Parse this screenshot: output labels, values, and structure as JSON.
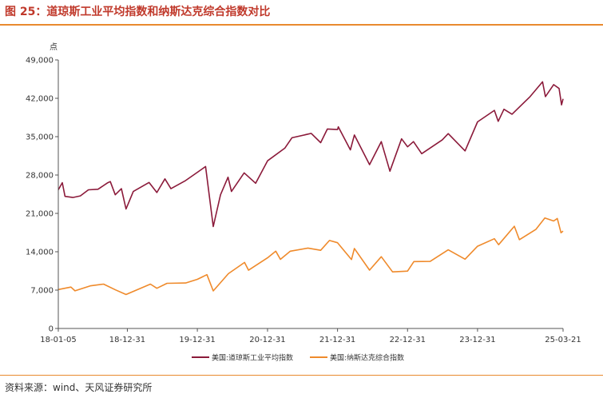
{
  "figure": {
    "title": "图 25：道琼斯工业平均指数和纳斯达克综合指数对比",
    "source": "资料来源：wind、天风证券研究所"
  },
  "colors": {
    "accent": "#e98a2e",
    "title": "#c0392b",
    "dow": "#8b1a3a",
    "nasdaq": "#ef8a2b"
  },
  "chart_data": {
    "type": "line",
    "ylabel": "点",
    "ylim": [
      0,
      49000
    ],
    "yticks": [
      0,
      7000,
      14000,
      21000,
      28000,
      35000,
      42000,
      49000
    ],
    "ytick_labels": [
      "0",
      "7,000",
      "14,000",
      "21,000",
      "28,000",
      "35,000",
      "42,000",
      "49,000"
    ],
    "xticks": [
      "18-01-05",
      "18-12-31",
      "19-12-31",
      "20-12-31",
      "21-12-31",
      "22-12-31",
      "23-12-31",
      "25-03-21"
    ],
    "xtick_dates": [
      "2018-01-05",
      "2018-12-31",
      "2019-12-31",
      "2020-12-31",
      "2021-12-31",
      "2022-12-31",
      "2023-12-31",
      "2025-03-21"
    ],
    "xlim": [
      "2018-01-05",
      "2025-03-21"
    ],
    "legend_position": "bottom",
    "series": [
      {
        "name": "美国:道琼斯工业平均指数",
        "color": "#8b1a3a",
        "points": [
          [
            "2018-01-05",
            25300
          ],
          [
            "2018-01-26",
            26600
          ],
          [
            "2018-02-09",
            24100
          ],
          [
            "2018-03-22",
            23900
          ],
          [
            "2018-04-30",
            24200
          ],
          [
            "2018-06-11",
            25300
          ],
          [
            "2018-07-31",
            25400
          ],
          [
            "2018-09-20",
            26600
          ],
          [
            "2018-10-03",
            26800
          ],
          [
            "2018-10-29",
            24400
          ],
          [
            "2018-11-30",
            25500
          ],
          [
            "2018-12-24",
            21800
          ],
          [
            "2019-01-31",
            25000
          ],
          [
            "2019-04-23",
            26650
          ],
          [
            "2019-06-03",
            24800
          ],
          [
            "2019-07-15",
            27300
          ],
          [
            "2019-08-15",
            25500
          ],
          [
            "2019-10-31",
            27000
          ],
          [
            "2019-12-31",
            28500
          ],
          [
            "2020-02-12",
            29550
          ],
          [
            "2020-03-23",
            18600
          ],
          [
            "2020-04-30",
            24400
          ],
          [
            "2020-06-08",
            27600
          ],
          [
            "2020-06-26",
            25000
          ],
          [
            "2020-08-31",
            28400
          ],
          [
            "2020-10-30",
            26500
          ],
          [
            "2020-12-31",
            30600
          ],
          [
            "2021-03-31",
            32900
          ],
          [
            "2021-05-07",
            34800
          ],
          [
            "2021-08-16",
            35600
          ],
          [
            "2021-10-04",
            33900
          ],
          [
            "2021-11-08",
            36400
          ],
          [
            "2021-12-31",
            36300
          ],
          [
            "2022-01-04",
            36800
          ],
          [
            "2022-03-08",
            32600
          ],
          [
            "2022-03-29",
            35300
          ],
          [
            "2022-06-16",
            29900
          ],
          [
            "2022-08-16",
            34100
          ],
          [
            "2022-09-30",
            28700
          ],
          [
            "2022-11-30",
            34600
          ],
          [
            "2022-12-31",
            33150
          ],
          [
            "2023-01-31",
            34100
          ],
          [
            "2023-03-15",
            31900
          ],
          [
            "2023-06-30",
            34400
          ],
          [
            "2023-07-31",
            35550
          ],
          [
            "2023-10-27",
            32400
          ],
          [
            "2023-12-31",
            37700
          ],
          [
            "2024-03-28",
            39800
          ],
          [
            "2024-04-17",
            37800
          ],
          [
            "2024-05-17",
            40000
          ],
          [
            "2024-06-28",
            39100
          ],
          [
            "2024-09-30",
            42300
          ],
          [
            "2024-12-04",
            45000
          ],
          [
            "2024-12-19",
            42300
          ],
          [
            "2025-01-31",
            44500
          ],
          [
            "2025-02-28",
            43800
          ],
          [
            "2025-03-13",
            40800
          ],
          [
            "2025-03-21",
            41900
          ]
        ]
      },
      {
        "name": "美国:纳斯达克综合指数",
        "color": "#ef8a2b",
        "points": [
          [
            "2018-01-05",
            7100
          ],
          [
            "2018-03-12",
            7550
          ],
          [
            "2018-04-02",
            6870
          ],
          [
            "2018-06-20",
            7780
          ],
          [
            "2018-08-29",
            8100
          ],
          [
            "2018-10-30",
            7050
          ],
          [
            "2018-12-24",
            6200
          ],
          [
            "2019-04-30",
            8100
          ],
          [
            "2019-06-03",
            7330
          ],
          [
            "2019-07-26",
            8240
          ],
          [
            "2019-10-31",
            8300
          ],
          [
            "2019-12-31",
            8970
          ],
          [
            "2020-02-19",
            9820
          ],
          [
            "2020-03-23",
            6860
          ],
          [
            "2020-06-10",
            10000
          ],
          [
            "2020-09-02",
            12050
          ],
          [
            "2020-09-23",
            10630
          ],
          [
            "2020-12-31",
            12890
          ],
          [
            "2021-02-12",
            14100
          ],
          [
            "2021-03-08",
            12610
          ],
          [
            "2021-04-29",
            14100
          ],
          [
            "2021-07-30",
            14670
          ],
          [
            "2021-10-04",
            14260
          ],
          [
            "2021-11-19",
            16060
          ],
          [
            "2021-12-31",
            15650
          ],
          [
            "2022-03-14",
            12580
          ],
          [
            "2022-03-29",
            14600
          ],
          [
            "2022-06-16",
            10650
          ],
          [
            "2022-08-16",
            13100
          ],
          [
            "2022-10-14",
            10320
          ],
          [
            "2022-12-31",
            10470
          ],
          [
            "2023-02-02",
            12200
          ],
          [
            "2023-04-28",
            12230
          ],
          [
            "2023-07-31",
            14350
          ],
          [
            "2023-10-27",
            12640
          ],
          [
            "2023-12-31",
            15010
          ],
          [
            "2024-03-28",
            16380
          ],
          [
            "2024-04-19",
            15280
          ],
          [
            "2024-07-10",
            18650
          ],
          [
            "2024-08-05",
            16200
          ],
          [
            "2024-10-31",
            18100
          ],
          [
            "2024-12-16",
            20170
          ],
          [
            "2025-01-31",
            19620
          ],
          [
            "2025-02-19",
            20060
          ],
          [
            "2025-03-10",
            17470
          ],
          [
            "2025-03-21",
            17780
          ]
        ]
      }
    ]
  }
}
